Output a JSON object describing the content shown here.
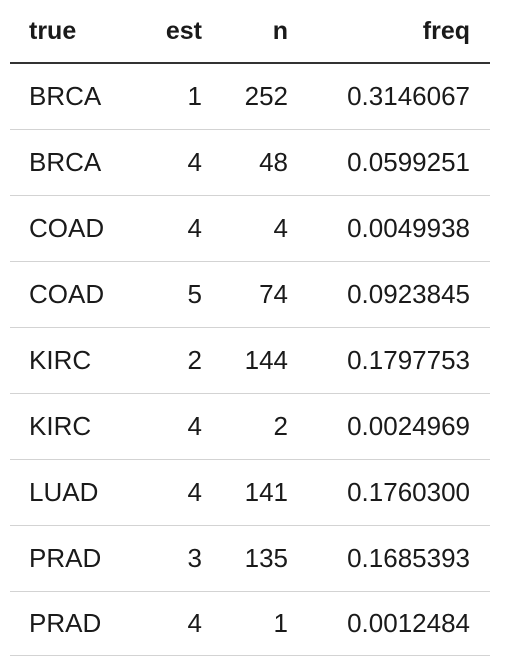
{
  "table": {
    "columns": [
      "true",
      "est",
      "n",
      "freq"
    ],
    "rows": [
      {
        "true": "BRCA",
        "est": "1",
        "n": "252",
        "freq": "0.3146067"
      },
      {
        "true": "BRCA",
        "est": "4",
        "n": "48",
        "freq": "0.0599251"
      },
      {
        "true": "COAD",
        "est": "4",
        "n": "4",
        "freq": "0.0049938"
      },
      {
        "true": "COAD",
        "est": "5",
        "n": "74",
        "freq": "0.0923845"
      },
      {
        "true": "KIRC",
        "est": "2",
        "n": "144",
        "freq": "0.1797753"
      },
      {
        "true": "KIRC",
        "est": "4",
        "n": "2",
        "freq": "0.0024969"
      },
      {
        "true": "LUAD",
        "est": "4",
        "n": "141",
        "freq": "0.1760300"
      },
      {
        "true": "PRAD",
        "est": "3",
        "n": "135",
        "freq": "0.1685393"
      },
      {
        "true": "PRAD",
        "est": "4",
        "n": "1",
        "freq": "0.0012484"
      }
    ]
  }
}
